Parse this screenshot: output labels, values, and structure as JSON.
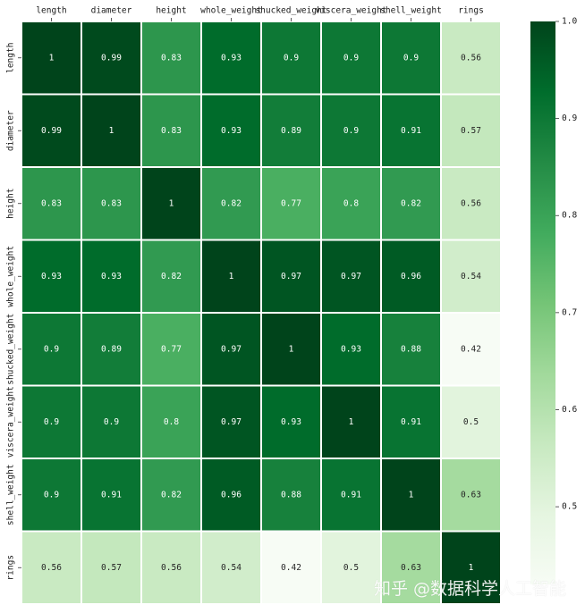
{
  "chart_data": {
    "type": "heatmap",
    "title": "",
    "xlabel": "",
    "ylabel": "",
    "x_labels": [
      "length",
      "diameter",
      "height",
      "whole_weight",
      "shucked_weight",
      "viscera_weight",
      "shell_weight",
      "rings"
    ],
    "y_labels": [
      "length",
      "diameter",
      "height",
      "whole_weight",
      "shucked_weight",
      "viscera_weight",
      "shell_weight",
      "rings"
    ],
    "values": [
      [
        1,
        0.99,
        0.83,
        0.93,
        0.9,
        0.9,
        0.9,
        0.56
      ],
      [
        0.99,
        1,
        0.83,
        0.93,
        0.89,
        0.9,
        0.91,
        0.57
      ],
      [
        0.83,
        0.83,
        1,
        0.82,
        0.77,
        0.8,
        0.82,
        0.56
      ],
      [
        0.93,
        0.93,
        0.82,
        1,
        0.97,
        0.97,
        0.96,
        0.54
      ],
      [
        0.9,
        0.89,
        0.77,
        0.97,
        1,
        0.93,
        0.88,
        0.42
      ],
      [
        0.9,
        0.9,
        0.8,
        0.97,
        0.93,
        1,
        0.91,
        0.5
      ],
      [
        0.9,
        0.91,
        0.82,
        0.96,
        0.88,
        0.91,
        1,
        0.63
      ],
      [
        0.56,
        0.57,
        0.56,
        0.54,
        0.42,
        0.5,
        0.63,
        1
      ]
    ],
    "colormap": "Greens",
    "vmin": 0.42,
    "vmax": 1.0,
    "colorbar": {
      "ticks": [
        0.5,
        0.6,
        0.7,
        0.8,
        0.9,
        1.0
      ],
      "tick_labels": [
        "0.5",
        "0.6",
        "0.7",
        "0.8",
        "0.9",
        "1.0"
      ]
    },
    "annotations": true,
    "grid": false,
    "x_tick_position": "top"
  },
  "watermark": {
    "text": "知乎 @数据科学人工智能"
  }
}
